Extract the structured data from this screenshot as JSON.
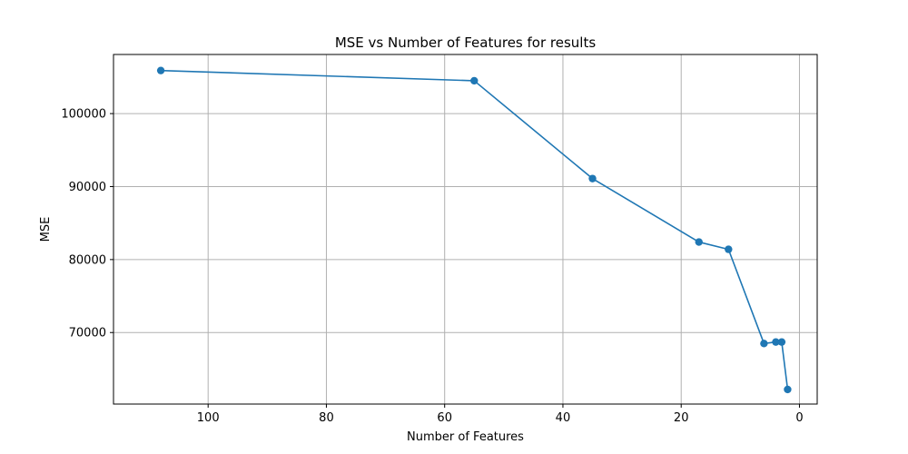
{
  "chart_data": {
    "type": "line",
    "title": "MSE vs Number of Features for results",
    "xlabel": "Number of Features",
    "ylabel": "MSE",
    "x_inverted": true,
    "xlim": [
      116,
      -3
    ],
    "ylim": [
      60200,
      108100
    ],
    "x_ticks": [
      {
        "value": 100,
        "label": "100"
      },
      {
        "value": 80,
        "label": "80"
      },
      {
        "value": 60,
        "label": "60"
      },
      {
        "value": 40,
        "label": "40"
      },
      {
        "value": 20,
        "label": "20"
      },
      {
        "value": 0,
        "label": "0"
      }
    ],
    "y_ticks": [
      {
        "value": 70000,
        "label": "70000"
      },
      {
        "value": 80000,
        "label": "80000"
      },
      {
        "value": 90000,
        "label": "90000"
      },
      {
        "value": 100000,
        "label": "100000"
      }
    ],
    "grid": true,
    "series": [
      {
        "color": "#1f77b4",
        "marker": "circle",
        "points": [
          {
            "x": 108,
            "y": 105900
          },
          {
            "x": 55,
            "y": 104500
          },
          {
            "x": 35,
            "y": 91100
          },
          {
            "x": 17,
            "y": 82400
          },
          {
            "x": 12,
            "y": 81400
          },
          {
            "x": 6,
            "y": 68500
          },
          {
            "x": 4,
            "y": 68700
          },
          {
            "x": 3,
            "y": 68700
          },
          {
            "x": 2,
            "y": 62200
          }
        ]
      }
    ]
  }
}
